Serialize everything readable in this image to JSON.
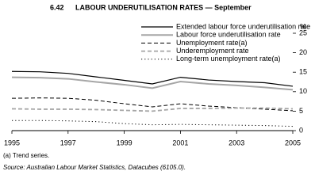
{
  "chart_data": {
    "type": "line",
    "number": "6.42",
    "title": "LABOUR UNDERUTILISATION RATES — September",
    "ylabel": "%",
    "x": [
      1995,
      1996,
      1997,
      1998,
      1999,
      2000,
      2001,
      2002,
      2003,
      2004,
      2005
    ],
    "xlim": [
      1995,
      2005
    ],
    "xticks": [
      1995,
      1997,
      1999,
      2001,
      2003,
      2005
    ],
    "ylim": [
      0,
      25
    ],
    "yticks": [
      0,
      5,
      10,
      15,
      20,
      25
    ],
    "series": [
      {
        "name": "Extended labour force underutilisation rate",
        "color": "#000000",
        "dash": "solid",
        "width": 1.2,
        "values": [
          15.2,
          15.1,
          14.7,
          13.8,
          12.9,
          12.0,
          13.7,
          13.0,
          12.6,
          12.3,
          11.4
        ]
      },
      {
        "name": "Labour force underutilisation rate",
        "color": "#a6a6a6",
        "dash": "solid",
        "width": 2,
        "values": [
          13.7,
          13.6,
          13.3,
          12.5,
          11.8,
          10.9,
          12.6,
          12.0,
          11.6,
          11.1,
          10.5
        ]
      },
      {
        "name": "Unemployment rate(a)",
        "color": "#000000",
        "dash": "dashed",
        "width": 1,
        "values": [
          8.3,
          8.4,
          8.3,
          7.8,
          6.9,
          6.1,
          6.9,
          6.3,
          5.9,
          5.5,
          5.1
        ]
      },
      {
        "name": "Underemployment rate",
        "color": "#a6a6a6",
        "dash": "dashed",
        "width": 1.8,
        "values": [
          5.6,
          5.5,
          5.5,
          5.4,
          5.2,
          5.0,
          5.7,
          5.7,
          5.8,
          5.8,
          5.6
        ]
      },
      {
        "name": "Long-term unemployment rate(a)",
        "color": "#000000",
        "dash": "dotted",
        "width": 1,
        "values": [
          2.6,
          2.6,
          2.5,
          2.3,
          1.8,
          1.5,
          1.6,
          1.5,
          1.4,
          1.3,
          1.1
        ]
      }
    ],
    "footnotes": [
      "(a) Trend series.",
      "Source: Australian Labour Market Statistics, Datacubes (6105.0)."
    ]
  }
}
